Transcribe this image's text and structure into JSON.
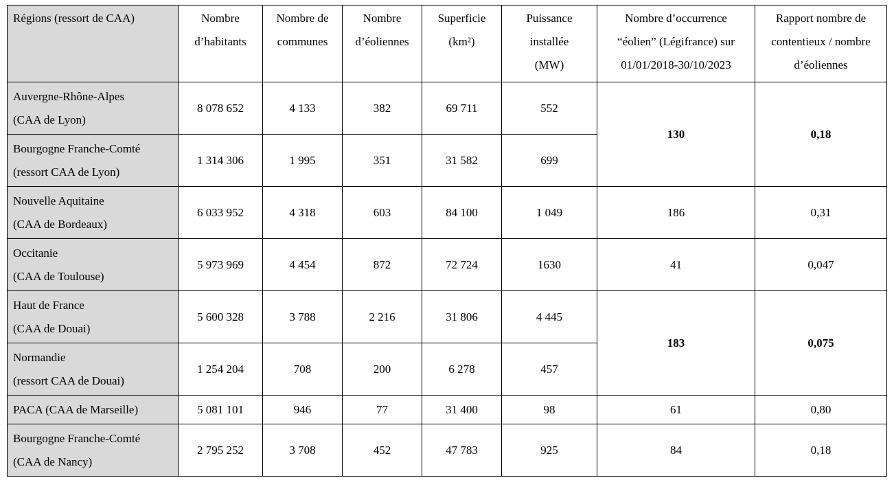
{
  "table": {
    "headers": [
      [
        "Régions (ressort de CAA)"
      ],
      [
        "Nombre",
        "d’habitants"
      ],
      [
        "Nombre de",
        "communes"
      ],
      [
        "Nombre",
        "d’éoliennes"
      ],
      [
        "Superficie",
        "(km²)"
      ],
      [
        "Puissance",
        "installée",
        "(MW)"
      ],
      [
        "Nombre d’occurrence",
        "“éolien” (Légifrance) sur",
        "01/01/2018-30/10/2023"
      ],
      [
        "Rapport nombre de",
        "contentieux / nombre",
        "d’éoliennes"
      ]
    ],
    "rows": [
      {
        "region": [
          "Auvergne-Rhône-Alpes",
          "(CAA de Lyon)"
        ],
        "habitants": "8 078 652",
        "communes": "4 133",
        "eoliennes": "382",
        "superficie": "69 711",
        "puissance": "552",
        "occurrences": "130",
        "rapport": "0,18"
      },
      {
        "region": [
          "Bourgogne Franche-Comté",
          "(ressort CAA de Lyon)"
        ],
        "habitants": "1 314 306",
        "communes": "1 995",
        "eoliennes": "351",
        "superficie": "31 582",
        "puissance": "699"
      },
      {
        "region": [
          "Nouvelle Aquitaine",
          "(CAA de Bordeaux)"
        ],
        "habitants": "6 033 952",
        "communes": "4 318",
        "eoliennes": "603",
        "superficie": "84 100",
        "puissance": "1 049",
        "occurrences": "186",
        "rapport": "0,31"
      },
      {
        "region": [
          "Occitanie",
          "(CAA de Toulouse)"
        ],
        "habitants": "5 973 969",
        "communes": "4 454",
        "eoliennes": "872",
        "superficie": "72 724",
        "puissance": "1630",
        "occurrences": "41",
        "rapport": "0,047"
      },
      {
        "region": [
          "Haut de France",
          "(CAA de Douai)"
        ],
        "habitants": "5 600 328",
        "communes": "3 788",
        "eoliennes": "2 216",
        "superficie": "31 806",
        "puissance": "4 445",
        "occurrences": "183",
        "rapport": "0,075"
      },
      {
        "region": [
          "Normandie",
          "(ressort CAA de Douai)"
        ],
        "habitants": "1 254 204",
        "communes": "708",
        "eoliennes": "200",
        "superficie": "6 278",
        "puissance": "457"
      },
      {
        "region": [
          "PACA (CAA de Marseille)"
        ],
        "habitants": "5 081 101",
        "communes": "946",
        "eoliennes": "77",
        "superficie": "31 400",
        "puissance": "98",
        "occurrences": "61",
        "rapport": "0,80"
      },
      {
        "region": [
          "Bourgogne Franche-Comté",
          "(CAA de Nancy)"
        ],
        "habitants": "2 795 252",
        "communes": "3 708",
        "eoliennes": "452",
        "superficie": "47 783",
        "puissance": "925",
        "occurrences": "84",
        "rapport": "0,18"
      }
    ]
  }
}
